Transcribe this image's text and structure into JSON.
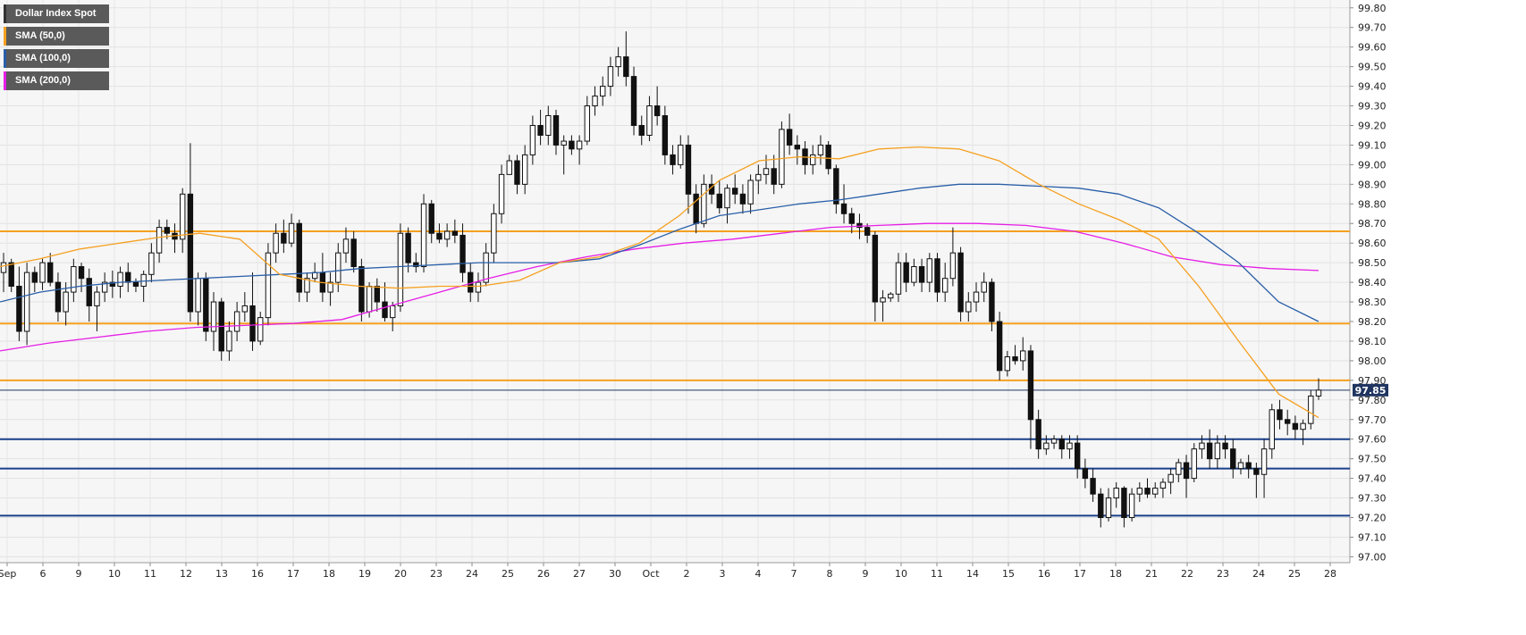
{
  "legend": [
    {
      "label": "Dollar Index Spot",
      "color": "#222222"
    },
    {
      "label": "SMA (50,0)",
      "color": "#f5a020"
    },
    {
      "label": "SMA (100,0)",
      "color": "#2a5fa8"
    },
    {
      "label": "SMA (200,0)",
      "color": "#e61ee6"
    }
  ],
  "last_price_label": "97.85",
  "chart_data": {
    "type": "candlestick",
    "x_ticks": [
      "Sep",
      "6",
      "9",
      "10",
      "11",
      "12",
      "13",
      "16",
      "17",
      "18",
      "19",
      "20",
      "23",
      "24",
      "25",
      "26",
      "27",
      "30",
      "Oct",
      "2",
      "3",
      "4",
      "7",
      "8",
      "9",
      "10",
      "11",
      "14",
      "15",
      "16",
      "17",
      "18",
      "21",
      "22",
      "23",
      "24",
      "25",
      "28"
    ],
    "y_ticks": [
      "99.80",
      "99.70",
      "99.60",
      "99.50",
      "99.40",
      "99.30",
      "99.20",
      "99.10",
      "99.00",
      "98.90",
      "98.80",
      "98.70",
      "98.60",
      "98.50",
      "98.40",
      "98.30",
      "98.20",
      "98.10",
      "98.00",
      "97.90",
      "97.80",
      "97.70",
      "97.60",
      "97.50",
      "97.40",
      "97.30",
      "97.20",
      "97.10",
      "97.00"
    ],
    "ylim": [
      96.97,
      99.84
    ],
    "grid": true,
    "last_price": 97.85,
    "horizontal_levels": [
      {
        "value": 98.66,
        "color": "#f5a020"
      },
      {
        "value": 98.19,
        "color": "#f5a020"
      },
      {
        "value": 97.9,
        "color": "#f5a020"
      },
      {
        "value": 97.6,
        "color": "#1a3f8a"
      },
      {
        "value": 97.45,
        "color": "#1a3f8a"
      },
      {
        "value": 97.21,
        "color": "#1a3f8a"
      }
    ],
    "sma50": [
      98.48,
      98.52,
      98.57,
      98.6,
      98.63,
      98.65,
      98.62,
      98.44,
      98.4,
      98.38,
      98.37,
      98.38,
      98.38,
      98.41,
      98.5,
      98.53,
      98.6,
      98.74,
      98.92,
      99.02,
      99.04,
      99.03,
      99.08,
      99.09,
      99.08,
      99.02,
      98.9,
      98.8,
      98.72,
      98.62,
      98.38,
      98.1,
      97.83,
      97.71
    ],
    "sma100": [
      98.3,
      98.35,
      98.38,
      98.4,
      98.41,
      98.42,
      98.43,
      98.44,
      98.45,
      98.47,
      98.48,
      98.49,
      98.5,
      98.5,
      98.5,
      98.52,
      98.59,
      98.67,
      98.74,
      98.77,
      98.8,
      98.82,
      98.85,
      98.88,
      98.9,
      98.9,
      98.89,
      98.88,
      98.85,
      98.78,
      98.65,
      98.5,
      98.3,
      98.2
    ],
    "sma200": [
      98.05,
      98.09,
      98.12,
      98.15,
      98.17,
      98.18,
      98.19,
      98.21,
      98.28,
      98.35,
      98.42,
      98.48,
      98.53,
      98.57,
      98.6,
      98.62,
      98.65,
      98.68,
      98.69,
      98.7,
      98.7,
      98.69,
      98.66,
      98.6,
      98.53,
      98.49,
      98.47,
      98.46
    ],
    "candles": [
      [
        98.45,
        98.55,
        98.35,
        98.5
      ],
      [
        98.5,
        98.52,
        98.35,
        98.38
      ],
      [
        98.38,
        98.48,
        98.1,
        98.15
      ],
      [
        98.15,
        98.5,
        98.08,
        98.45
      ],
      [
        98.45,
        98.48,
        98.35,
        98.4
      ],
      [
        98.4,
        98.52,
        98.36,
        98.5
      ],
      [
        98.5,
        98.55,
        98.38,
        98.4
      ],
      [
        98.4,
        98.45,
        98.2,
        98.25
      ],
      [
        98.25,
        98.4,
        98.18,
        98.35
      ],
      [
        98.35,
        98.52,
        98.3,
        98.48
      ],
      [
        98.48,
        98.5,
        98.35,
        98.42
      ],
      [
        98.42,
        98.47,
        98.2,
        98.28
      ],
      [
        98.28,
        98.38,
        98.15,
        98.35
      ],
      [
        98.35,
        98.45,
        98.3,
        98.4
      ],
      [
        98.4,
        98.46,
        98.32,
        98.38
      ],
      [
        98.38,
        98.48,
        98.32,
        98.45
      ],
      [
        98.45,
        98.5,
        98.35,
        98.4
      ],
      [
        98.4,
        98.42,
        98.35,
        98.38
      ],
      [
        98.38,
        98.46,
        98.3,
        98.44
      ],
      [
        98.44,
        98.6,
        98.4,
        98.55
      ],
      [
        98.55,
        98.72,
        98.5,
        98.68
      ],
      [
        98.68,
        98.72,
        98.62,
        98.65
      ],
      [
        98.65,
        98.7,
        98.55,
        98.62
      ],
      [
        98.62,
        98.88,
        98.55,
        98.85
      ],
      [
        98.85,
        99.11,
        98.2,
        98.25
      ],
      [
        98.25,
        98.45,
        98.18,
        98.42
      ],
      [
        98.42,
        98.45,
        98.1,
        98.15
      ],
      [
        98.15,
        98.35,
        98.05,
        98.3
      ],
      [
        98.3,
        98.32,
        98.0,
        98.05
      ],
      [
        98.05,
        98.2,
        98.0,
        98.15
      ],
      [
        98.15,
        98.3,
        98.1,
        98.25
      ],
      [
        98.25,
        98.35,
        98.2,
        98.28
      ],
      [
        98.28,
        98.45,
        98.05,
        98.1
      ],
      [
        98.1,
        98.25,
        98.08,
        98.22
      ],
      [
        98.22,
        98.6,
        98.18,
        98.55
      ],
      [
        98.55,
        98.7,
        98.5,
        98.65
      ],
      [
        98.65,
        98.72,
        98.55,
        98.6
      ],
      [
        98.6,
        98.75,
        98.58,
        98.7
      ],
      [
        98.7,
        98.72,
        98.3,
        98.35
      ],
      [
        98.35,
        98.45,
        98.3,
        98.42
      ],
      [
        98.42,
        98.5,
        98.4,
        98.45
      ],
      [
        98.45,
        98.55,
        98.3,
        98.35
      ],
      [
        98.35,
        98.45,
        98.28,
        98.4
      ],
      [
        98.4,
        98.6,
        98.35,
        98.55
      ],
      [
        98.55,
        98.68,
        98.5,
        98.62
      ],
      [
        98.62,
        98.66,
        98.45,
        98.48
      ],
      [
        98.48,
        98.52,
        98.2,
        98.25
      ],
      [
        98.25,
        98.4,
        98.22,
        98.38
      ],
      [
        98.38,
        98.42,
        98.25,
        98.3
      ],
      [
        98.3,
        98.4,
        98.2,
        98.22
      ],
      [
        98.22,
        98.3,
        98.15,
        98.28
      ],
      [
        98.28,
        98.7,
        98.25,
        98.65
      ],
      [
        98.65,
        98.68,
        98.45,
        98.5
      ],
      [
        98.5,
        98.55,
        98.45,
        98.48
      ],
      [
        98.48,
        98.85,
        98.45,
        98.8
      ],
      [
        98.8,
        98.82,
        98.6,
        98.65
      ],
      [
        98.65,
        98.7,
        98.6,
        98.62
      ],
      [
        98.62,
        98.7,
        98.58,
        98.66
      ],
      [
        98.66,
        98.72,
        98.6,
        98.64
      ],
      [
        98.64,
        98.7,
        98.4,
        98.45
      ],
      [
        98.45,
        98.5,
        98.3,
        98.35
      ],
      [
        98.35,
        98.45,
        98.3,
        98.4
      ],
      [
        98.4,
        98.6,
        98.38,
        98.55
      ],
      [
        98.55,
        98.8,
        98.5,
        98.75
      ],
      [
        98.75,
        99.0,
        98.7,
        98.95
      ],
      [
        98.95,
        99.05,
        98.95,
        99.02
      ],
      [
        99.02,
        99.05,
        98.85,
        98.9
      ],
      [
        98.9,
        99.1,
        98.85,
        99.05
      ],
      [
        99.05,
        99.25,
        99.0,
        99.2
      ],
      [
        99.2,
        99.28,
        99.1,
        99.15
      ],
      [
        99.15,
        99.3,
        99.1,
        99.25
      ],
      [
        99.25,
        99.28,
        99.05,
        99.1
      ],
      [
        99.1,
        99.15,
        98.95,
        99.12
      ],
      [
        99.12,
        99.15,
        99.05,
        99.08
      ],
      [
        99.08,
        99.15,
        99.0,
        99.12
      ],
      [
        99.12,
        99.35,
        99.1,
        99.3
      ],
      [
        99.3,
        99.4,
        99.25,
        99.35
      ],
      [
        99.35,
        99.45,
        99.3,
        99.4
      ],
      [
        99.4,
        99.55,
        99.35,
        99.5
      ],
      [
        99.5,
        99.6,
        99.45,
        99.55
      ],
      [
        99.55,
        99.68,
        99.4,
        99.45
      ],
      [
        99.45,
        99.5,
        99.15,
        99.2
      ],
      [
        99.2,
        99.25,
        99.1,
        99.15
      ],
      [
        99.15,
        99.35,
        99.12,
        99.3
      ],
      [
        99.3,
        99.4,
        99.2,
        99.25
      ],
      [
        99.25,
        99.3,
        99.0,
        99.05
      ],
      [
        99.05,
        99.1,
        98.95,
        99.0
      ],
      [
        99.0,
        99.15,
        98.98,
        99.1
      ],
      [
        99.1,
        99.15,
        98.75,
        98.85
      ],
      [
        98.85,
        98.9,
        98.65,
        98.7
      ],
      [
        98.7,
        98.95,
        98.68,
        98.9
      ],
      [
        98.9,
        98.95,
        98.8,
        98.85
      ],
      [
        98.85,
        98.92,
        98.75,
        98.78
      ],
      [
        98.78,
        98.9,
        98.7,
        98.88
      ],
      [
        98.88,
        98.95,
        98.8,
        98.85
      ],
      [
        98.85,
        98.9,
        98.75,
        98.8
      ],
      [
        98.8,
        98.95,
        98.75,
        98.92
      ],
      [
        98.92,
        99.0,
        98.85,
        98.95
      ],
      [
        98.95,
        99.05,
        98.9,
        98.98
      ],
      [
        98.98,
        99.05,
        98.85,
        98.9
      ],
      [
        98.9,
        99.22,
        98.88,
        99.18
      ],
      [
        99.18,
        99.26,
        99.05,
        99.1
      ],
      [
        99.1,
        99.15,
        99.0,
        99.08
      ],
      [
        99.08,
        99.12,
        98.95,
        99.0
      ],
      [
        99.0,
        99.1,
        98.95,
        99.05
      ],
      [
        99.05,
        99.15,
        99.0,
        99.1
      ],
      [
        99.1,
        99.12,
        98.95,
        98.98
      ],
      [
        98.98,
        99.0,
        98.75,
        98.8
      ],
      [
        98.8,
        98.9,
        98.7,
        98.75
      ],
      [
        98.75,
        98.78,
        98.65,
        98.7
      ],
      [
        98.7,
        98.75,
        98.62,
        98.68
      ],
      [
        98.68,
        98.7,
        98.6,
        98.64
      ],
      [
        98.64,
        98.66,
        98.2,
        98.3
      ],
      [
        98.3,
        98.36,
        98.2,
        98.32
      ],
      [
        98.32,
        98.35,
        98.3,
        98.34
      ],
      [
        98.34,
        98.55,
        98.3,
        98.5
      ],
      [
        98.5,
        98.55,
        98.35,
        98.4
      ],
      [
        98.4,
        98.52,
        98.38,
        98.48
      ],
      [
        98.48,
        98.52,
        98.35,
        98.4
      ],
      [
        98.4,
        98.55,
        98.35,
        98.52
      ],
      [
        98.52,
        98.55,
        98.3,
        98.35
      ],
      [
        98.35,
        98.5,
        98.3,
        98.42
      ],
      [
        98.42,
        98.68,
        98.38,
        98.55
      ],
      [
        98.55,
        98.58,
        98.2,
        98.25
      ],
      [
        98.25,
        98.35,
        98.2,
        98.3
      ],
      [
        98.3,
        98.4,
        98.25,
        98.35
      ],
      [
        98.35,
        98.45,
        98.3,
        98.4
      ],
      [
        98.4,
        98.42,
        98.15,
        98.2
      ],
      [
        98.2,
        98.25,
        97.9,
        97.95
      ],
      [
        97.95,
        98.05,
        97.92,
        98.02
      ],
      [
        98.02,
        98.08,
        97.98,
        98.0
      ],
      [
        98.0,
        98.12,
        97.95,
        98.05
      ],
      [
        98.05,
        98.08,
        97.55,
        97.7
      ],
      [
        97.7,
        97.75,
        97.5,
        97.55
      ],
      [
        97.55,
        97.62,
        97.52,
        97.58
      ],
      [
        97.58,
        97.62,
        97.55,
        97.6
      ],
      [
        97.6,
        97.62,
        97.5,
        97.55
      ],
      [
        97.55,
        97.62,
        97.5,
        97.58
      ],
      [
        97.58,
        97.62,
        97.4,
        97.45
      ],
      [
        97.45,
        97.5,
        97.35,
        97.4
      ],
      [
        97.4,
        97.45,
        97.28,
        97.32
      ],
      [
        97.32,
        97.35,
        97.15,
        97.2
      ],
      [
        97.2,
        97.35,
        97.18,
        97.3
      ],
      [
        97.3,
        97.38,
        97.25,
        97.35
      ],
      [
        97.35,
        97.36,
        97.15,
        97.2
      ],
      [
        97.2,
        97.35,
        97.18,
        97.32
      ],
      [
        97.32,
        97.38,
        97.28,
        97.35
      ],
      [
        97.35,
        97.4,
        97.3,
        97.32
      ],
      [
        97.32,
        97.38,
        97.3,
        97.35
      ],
      [
        97.35,
        97.4,
        97.3,
        97.38
      ],
      [
        97.38,
        97.45,
        97.32,
        97.42
      ],
      [
        97.42,
        97.5,
        97.38,
        97.48
      ],
      [
        97.48,
        97.52,
        97.3,
        97.4
      ],
      [
        97.4,
        97.58,
        97.38,
        97.55
      ],
      [
        97.55,
        97.62,
        97.5,
        97.58
      ],
      [
        97.58,
        97.65,
        97.45,
        97.5
      ],
      [
        97.5,
        97.62,
        97.45,
        97.58
      ],
      [
        97.58,
        97.62,
        97.5,
        97.55
      ],
      [
        97.55,
        97.6,
        97.4,
        97.45
      ],
      [
        97.45,
        97.5,
        97.42,
        97.48
      ],
      [
        97.48,
        97.52,
        97.4,
        97.45
      ],
      [
        97.45,
        97.48,
        97.3,
        97.42
      ],
      [
        97.42,
        97.6,
        97.3,
        97.55
      ],
      [
        97.55,
        97.78,
        97.5,
        97.75
      ],
      [
        97.75,
        97.8,
        97.65,
        97.7
      ],
      [
        97.7,
        97.75,
        97.62,
        97.68
      ],
      [
        97.68,
        97.72,
        97.6,
        97.65
      ],
      [
        97.65,
        97.7,
        97.57,
        97.68
      ],
      [
        97.68,
        97.85,
        97.65,
        97.82
      ],
      [
        97.82,
        97.91,
        97.8,
        97.85
      ]
    ]
  }
}
